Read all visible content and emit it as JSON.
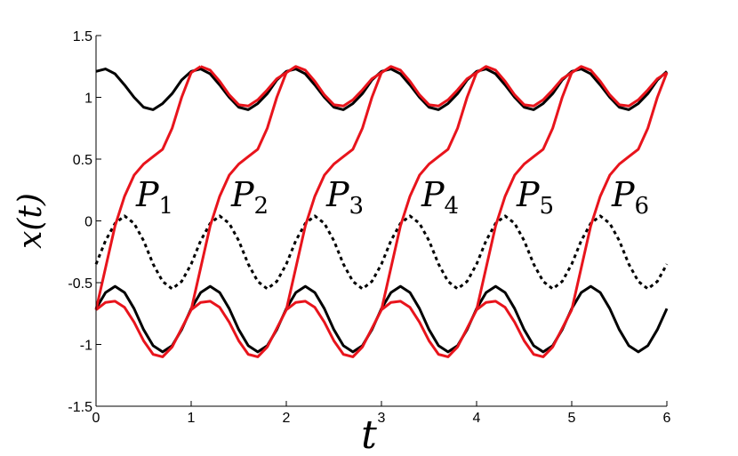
{
  "chart_data": {
    "type": "line",
    "xlabel": "t",
    "ylabel": "x(t)",
    "xlim": [
      0,
      6
    ],
    "ylim": [
      -1.5,
      1.5
    ],
    "xticks": [
      0,
      1,
      2,
      3,
      4,
      5,
      6
    ],
    "yticks": [
      -1.5,
      -1,
      -0.5,
      0,
      0.5,
      1,
      1.5
    ],
    "x": [
      0,
      0.1,
      0.2,
      0.3,
      0.4,
      0.5,
      0.6,
      0.7,
      0.8,
      0.9,
      1,
      1.1,
      1.2,
      1.3,
      1.4,
      1.5,
      1.6,
      1.7,
      1.8,
      1.9,
      2,
      2.1,
      2.2,
      2.3,
      2.4,
      2.5,
      2.6,
      2.7,
      2.8,
      2.9,
      3,
      3.1,
      3.2,
      3.3,
      3.4,
      3.5,
      3.6,
      3.7,
      3.8,
      3.9,
      4,
      4.1,
      4.2,
      4.3,
      4.4,
      4.5,
      4.6,
      4.7,
      4.8,
      4.9,
      5,
      5.1,
      5.2,
      5.3,
      5.4,
      5.5,
      5.6,
      5.7,
      5.8,
      5.9,
      6
    ],
    "series": [
      {
        "color": "#000000",
        "dash": false,
        "values": [
          1.21,
          1.23,
          1.19,
          1.1,
          1,
          0.92,
          0.9,
          0.95,
          1.03,
          1.14,
          1.21,
          1.23,
          1.19,
          1.1,
          1,
          0.92,
          0.9,
          0.95,
          1.03,
          1.14,
          1.21,
          1.23,
          1.19,
          1.1,
          1,
          0.92,
          0.9,
          0.95,
          1.03,
          1.14,
          1.21,
          1.23,
          1.19,
          1.1,
          1,
          0.92,
          0.9,
          0.95,
          1.03,
          1.14,
          1.21,
          1.23,
          1.19,
          1.1,
          1,
          0.92,
          0.9,
          0.95,
          1.03,
          1.14,
          1.21,
          1.23,
          1.19,
          1.1,
          1,
          0.92,
          0.9,
          0.95,
          1.03,
          1.14,
          1.21
        ]
      },
      {
        "color": "#000000",
        "dash": false,
        "values": [
          -0.71,
          -0.58,
          -0.53,
          -0.58,
          -0.71,
          -0.88,
          -1.01,
          -1.06,
          -1.01,
          -0.88,
          -0.71,
          -0.58,
          -0.53,
          -0.58,
          -0.71,
          -0.88,
          -1.01,
          -1.06,
          -1.01,
          -0.88,
          -0.71,
          -0.58,
          -0.53,
          -0.58,
          -0.71,
          -0.88,
          -1.01,
          -1.06,
          -1.01,
          -0.88,
          -0.71,
          -0.58,
          -0.53,
          -0.58,
          -0.71,
          -0.88,
          -1.01,
          -1.06,
          -1.01,
          -0.88,
          -0.71,
          -0.58,
          -0.53,
          -0.58,
          -0.71,
          -0.88,
          -1.01,
          -1.06,
          -1.01,
          -0.88,
          -0.71,
          -0.58,
          -0.53,
          -0.58,
          -0.71,
          -0.88,
          -1.01,
          -1.06,
          -1.01,
          -0.88,
          -0.71
        ]
      },
      {
        "color": "#000000",
        "dash": true,
        "values": [
          -0.35,
          -0.16,
          -0.02,
          0.04,
          -0.02,
          -0.16,
          -0.35,
          -0.49,
          -0.55,
          -0.49,
          -0.35,
          -0.16,
          -0.02,
          0.04,
          -0.02,
          -0.16,
          -0.35,
          -0.49,
          -0.55,
          -0.49,
          -0.35,
          -0.16,
          -0.02,
          0.04,
          -0.02,
          -0.16,
          -0.35,
          -0.49,
          -0.55,
          -0.49,
          -0.35,
          -0.16,
          -0.02,
          0.04,
          -0.02,
          -0.16,
          -0.35,
          -0.49,
          -0.55,
          -0.49,
          -0.35,
          -0.16,
          -0.02,
          0.04,
          -0.02,
          -0.16,
          -0.35,
          -0.49,
          -0.55,
          -0.49,
          -0.35,
          -0.16,
          -0.02,
          0.04,
          -0.02,
          -0.16,
          -0.35,
          -0.49,
          -0.55,
          -0.49,
          -0.35
        ]
      },
      {
        "color": "#e8141c",
        "dash": false,
        "values": [
          -0.72,
          -0.66,
          -0.65,
          -0.7,
          -0.82,
          -0.97,
          -1.08,
          -1.1,
          -1.02,
          -0.87,
          -0.72,
          -0.66,
          -0.65,
          -0.7,
          -0.82,
          -0.97,
          -1.08,
          -1.1,
          -1.02,
          -0.87,
          -0.72,
          -0.66,
          -0.65,
          -0.7,
          -0.82,
          -0.97,
          -1.08,
          -1.1,
          -1.02,
          -0.87,
          -0.72,
          -0.66,
          -0.65,
          -0.7,
          -0.82,
          -0.97,
          -1.08,
          -1.1,
          -1.02,
          -0.87,
          -0.72,
          -0.66,
          -0.65,
          -0.7,
          -0.82,
          -0.97,
          -1.08,
          -1.1,
          -1.02,
          -0.87,
          -0.72,
          null,
          null,
          null,
          null,
          null,
          null,
          null,
          null,
          null,
          null
        ]
      },
      {
        "color": "#e8141c",
        "dash": false,
        "values": [
          null,
          null,
          null,
          null,
          null,
          null,
          null,
          null,
          null,
          null,
          null,
          1.25,
          1.22,
          1.13,
          1.02,
          0.94,
          0.93,
          0.98,
          1.06,
          1.15,
          1.2,
          1.25,
          1.22,
          1.13,
          1.02,
          0.94,
          0.93,
          0.98,
          1.06,
          1.15,
          1.2,
          1.25,
          1.22,
          1.13,
          1.02,
          0.94,
          0.93,
          0.98,
          1.06,
          1.15,
          1.2,
          1.25,
          1.22,
          1.13,
          1.02,
          0.94,
          0.93,
          0.98,
          1.06,
          1.15,
          1.2,
          1.25,
          1.22,
          1.13,
          1.02,
          0.94,
          0.93,
          0.98,
          1.06,
          1.15,
          1.2
        ]
      },
      {
        "color": "#e8141c",
        "dash": false,
        "values": [
          -0.72,
          -0.38,
          -0.04,
          0.2,
          0.37,
          0.46,
          0.52,
          0.58,
          0.75,
          1,
          1.2,
          1.25,
          null,
          null,
          null,
          null,
          null,
          null,
          null,
          null,
          null,
          null,
          null,
          null,
          null,
          null,
          null,
          null,
          null,
          null,
          null,
          null,
          null,
          null,
          null,
          null,
          null,
          null,
          null,
          null,
          null,
          null,
          null,
          null,
          null,
          null,
          null,
          null,
          null,
          null,
          null,
          null,
          null,
          null,
          null,
          null,
          null,
          null,
          null,
          null,
          null
        ]
      },
      {
        "color": "#e8141c",
        "dash": false,
        "values": [
          null,
          null,
          null,
          null,
          null,
          null,
          null,
          null,
          null,
          null,
          -0.72,
          -0.38,
          -0.04,
          0.2,
          0.37,
          0.46,
          0.52,
          0.58,
          0.75,
          1,
          1.2,
          1.25,
          null,
          null,
          null,
          null,
          null,
          null,
          null,
          null,
          null,
          null,
          null,
          null,
          null,
          null,
          null,
          null,
          null,
          null,
          null,
          null,
          null,
          null,
          null,
          null,
          null,
          null,
          null,
          null,
          null,
          null,
          null,
          null,
          null,
          null,
          null,
          null,
          null,
          null,
          null
        ]
      },
      {
        "color": "#e8141c",
        "dash": false,
        "values": [
          null,
          null,
          null,
          null,
          null,
          null,
          null,
          null,
          null,
          null,
          null,
          null,
          null,
          null,
          null,
          null,
          null,
          null,
          null,
          null,
          -0.72,
          -0.38,
          -0.04,
          0.2,
          0.37,
          0.46,
          0.52,
          0.58,
          0.75,
          1,
          1.2,
          1.25,
          null,
          null,
          null,
          null,
          null,
          null,
          null,
          null,
          null,
          null,
          null,
          null,
          null,
          null,
          null,
          null,
          null,
          null,
          null,
          null,
          null,
          null,
          null,
          null,
          null,
          null,
          null,
          null,
          null
        ]
      },
      {
        "color": "#e8141c",
        "dash": false,
        "values": [
          null,
          null,
          null,
          null,
          null,
          null,
          null,
          null,
          null,
          null,
          null,
          null,
          null,
          null,
          null,
          null,
          null,
          null,
          null,
          null,
          null,
          null,
          null,
          null,
          null,
          null,
          null,
          null,
          null,
          null,
          -0.72,
          -0.38,
          -0.04,
          0.2,
          0.37,
          0.46,
          0.52,
          0.58,
          0.75,
          1,
          1.2,
          1.25,
          null,
          null,
          null,
          null,
          null,
          null,
          null,
          null,
          null,
          null,
          null,
          null,
          null,
          null,
          null,
          null,
          null,
          null,
          null
        ]
      },
      {
        "color": "#e8141c",
        "dash": false,
        "values": [
          null,
          null,
          null,
          null,
          null,
          null,
          null,
          null,
          null,
          null,
          null,
          null,
          null,
          null,
          null,
          null,
          null,
          null,
          null,
          null,
          null,
          null,
          null,
          null,
          null,
          null,
          null,
          null,
          null,
          null,
          null,
          null,
          null,
          null,
          null,
          null,
          null,
          null,
          null,
          null,
          -0.72,
          -0.38,
          -0.04,
          0.2,
          0.37,
          0.46,
          0.52,
          0.58,
          0.75,
          1,
          1.2,
          1.25,
          null,
          null,
          null,
          null,
          null,
          null,
          null,
          null,
          null
        ]
      },
      {
        "color": "#e8141c",
        "dash": false,
        "values": [
          null,
          null,
          null,
          null,
          null,
          null,
          null,
          null,
          null,
          null,
          null,
          null,
          null,
          null,
          null,
          null,
          null,
          null,
          null,
          null,
          null,
          null,
          null,
          null,
          null,
          null,
          null,
          null,
          null,
          null,
          null,
          null,
          null,
          null,
          null,
          null,
          null,
          null,
          null,
          null,
          null,
          null,
          null,
          null,
          null,
          null,
          null,
          null,
          null,
          null,
          -0.72,
          -0.38,
          -0.04,
          0.2,
          0.37,
          0.46,
          0.52,
          0.58,
          0.75,
          1,
          1.2
        ]
      }
    ],
    "annotations": [
      {
        "text": "P",
        "subscript": "1"
      },
      {
        "text": "P",
        "subscript": "2"
      },
      {
        "text": "P",
        "subscript": "3"
      },
      {
        "text": "P",
        "subscript": "4"
      },
      {
        "text": "P",
        "subscript": "5"
      },
      {
        "text": "P",
        "subscript": "6"
      }
    ]
  }
}
